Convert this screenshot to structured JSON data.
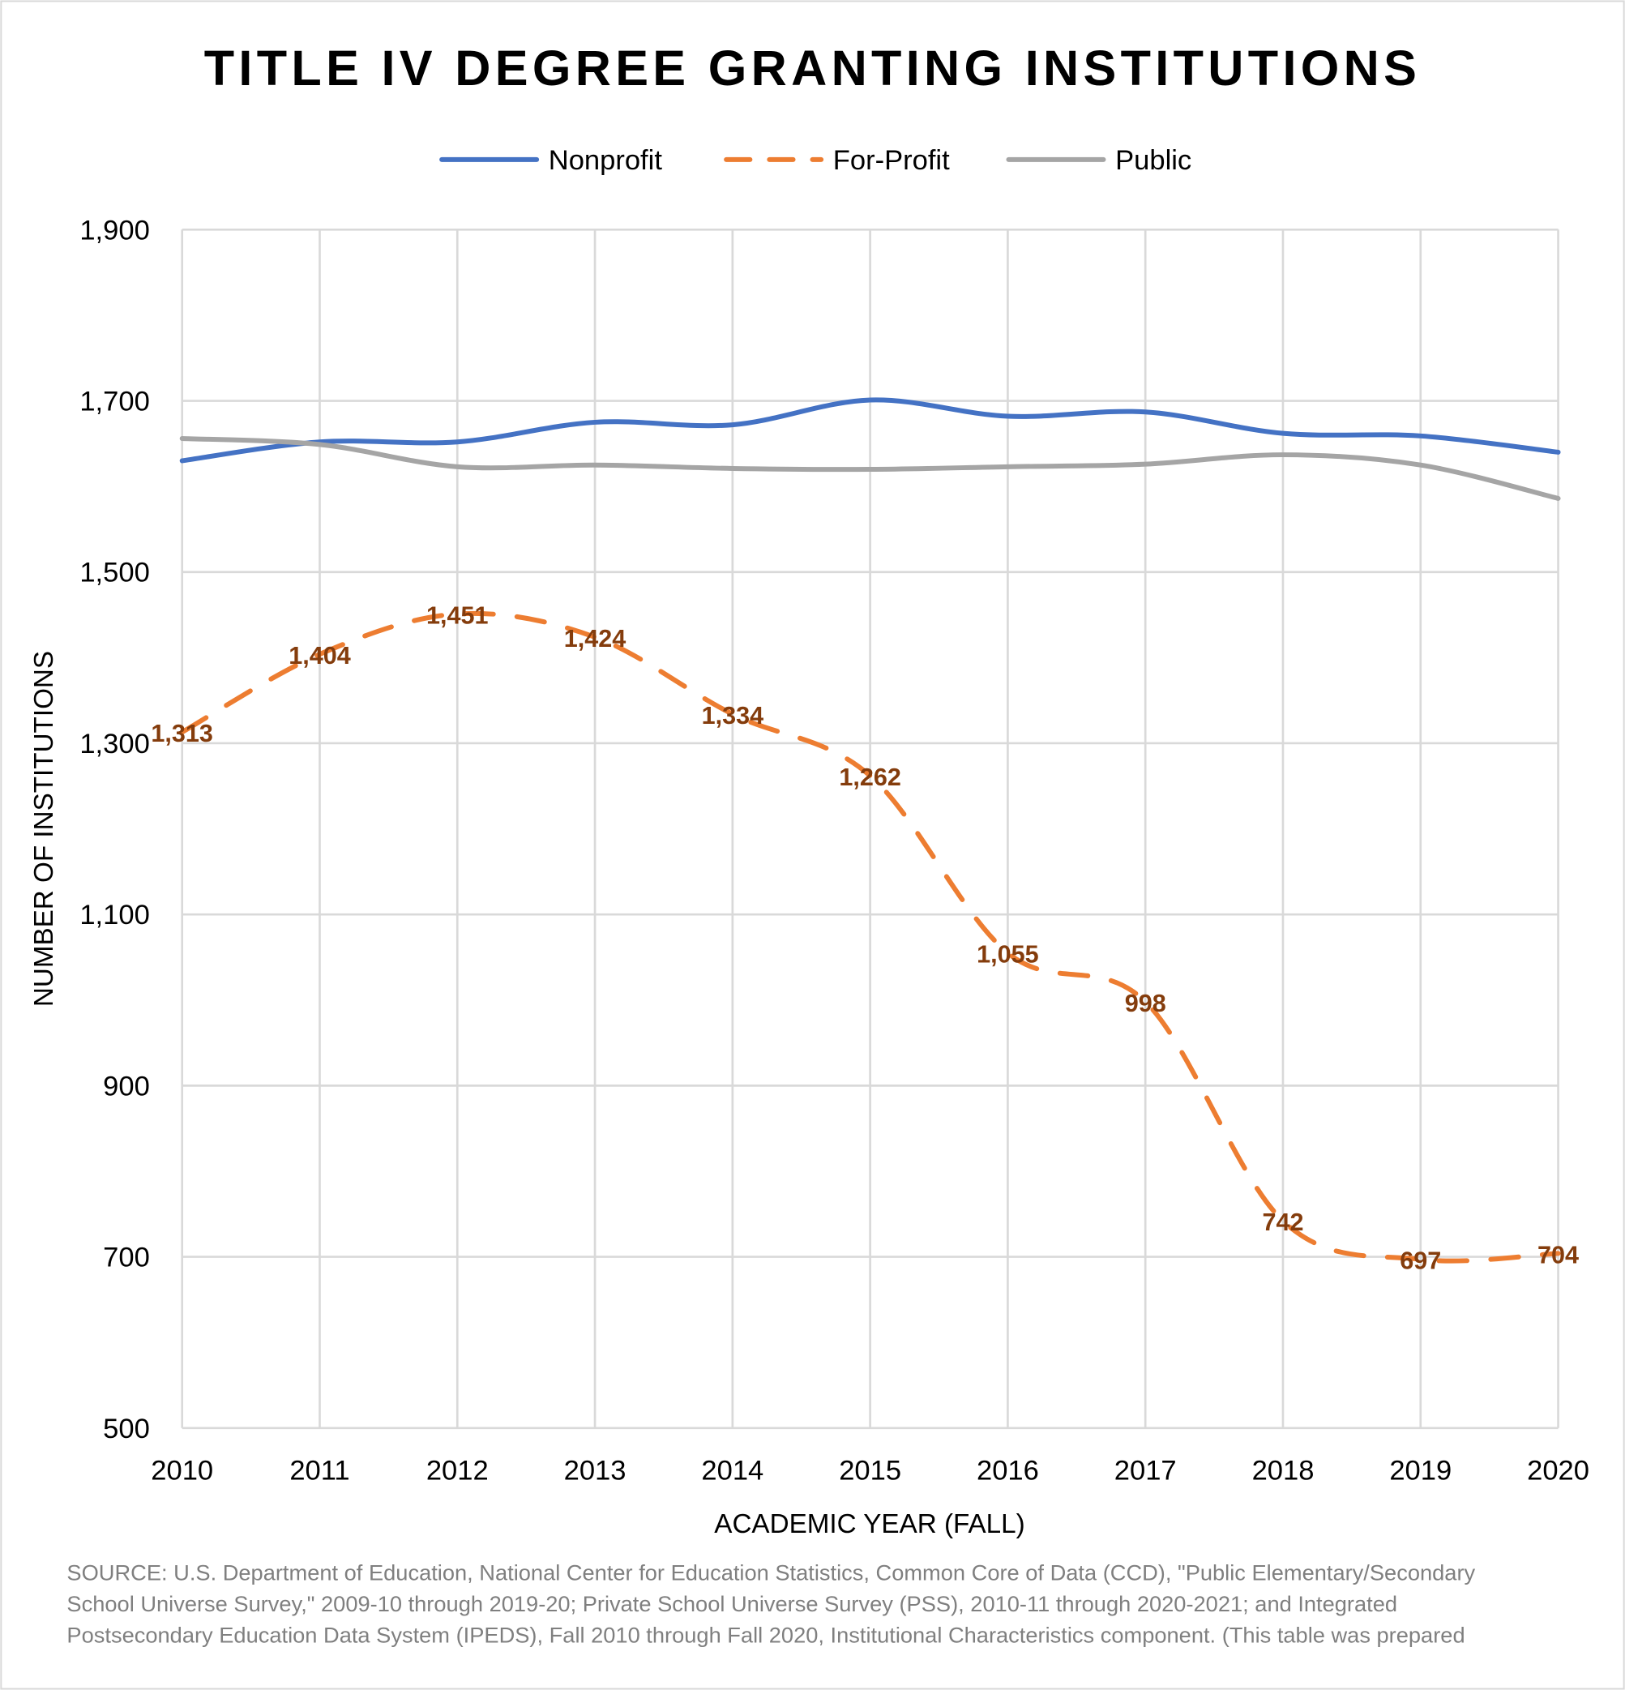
{
  "chart_data": {
    "type": "line",
    "title": "TITLE IV DEGREE GRANTING INSTITUTIONS",
    "xlabel": "ACADEMIC YEAR (FALL)",
    "ylabel": "NUMBER OF INSTITUTIONS",
    "x": [
      2010,
      2011,
      2012,
      2013,
      2014,
      2015,
      2016,
      2017,
      2018,
      2019,
      2020
    ],
    "ylim": [
      500,
      1900
    ],
    "yticks": [
      500,
      700,
      900,
      1100,
      1300,
      1500,
      1700,
      1900
    ],
    "ytick_labels": [
      "500",
      "700",
      "900",
      "1,100",
      "1,300",
      "1,500",
      "1,700",
      "1,900"
    ],
    "grid": true,
    "legend_position": "top",
    "series": [
      {
        "name": "Nonprofit",
        "color": "#4472c4",
        "dashed": false,
        "show_labels": false,
        "values": [
          1630,
          1652,
          1652,
          1675,
          1672,
          1701,
          1682,
          1687,
          1662,
          1659,
          1640
        ]
      },
      {
        "name": "For-Profit",
        "color": "#ed7d31",
        "dashed": true,
        "show_labels": true,
        "values": [
          1313,
          1404,
          1451,
          1424,
          1334,
          1262,
          1055,
          998,
          742,
          697,
          704
        ],
        "labels": [
          "1,313",
          "1,404",
          "1,451",
          "1,424",
          "1,334",
          "1,262",
          "1,055",
          "998",
          "742",
          "697",
          "704"
        ]
      },
      {
        "name": "Public",
        "color": "#a5a5a5",
        "dashed": false,
        "show_labels": false,
        "values": [
          1656,
          1649,
          1623,
          1625,
          1621,
          1620,
          1623,
          1626,
          1637,
          1625,
          1586
        ]
      }
    ],
    "label_color": "#843c0c"
  },
  "source": {
    "lines": [
      "SOURCE: U.S. Department of Education, National Center for Education Statistics, Common Core of Data (CCD), \"Public Elementary/Secondary",
      "School Universe Survey,\" 2009-10 through 2019-20; Private School Universe Survey (PSS), 2010-11 through 2020-2021; and Integrated",
      "Postsecondary Education Data System (IPEDS), Fall 2010 through Fall 2020, Institutional Characteristics component. (This table was prepared"
    ]
  }
}
